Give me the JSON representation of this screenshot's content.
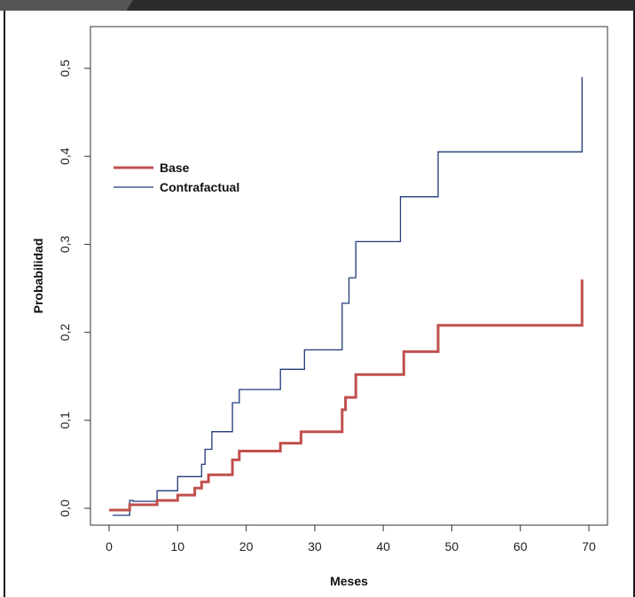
{
  "chart_data": {
    "type": "line",
    "step": true,
    "xlabel": "Meses",
    "ylabel": "Probabilidad",
    "xlim": [
      -3,
      71
    ],
    "ylim": [
      -0.03,
      0.5
    ],
    "x_ticks": [
      0,
      10,
      20,
      30,
      40,
      50,
      60,
      70
    ],
    "x_tick_labels": [
      "0",
      "10",
      "20",
      "30",
      "40",
      "50",
      "60",
      "70"
    ],
    "y_ticks": [
      0.0,
      0.1,
      0.2,
      0.3,
      0.4,
      0.5
    ],
    "y_tick_labels": [
      "0,0",
      "0,1",
      "0,2",
      "0,3",
      "0,4",
      "0,5"
    ],
    "grid": false,
    "legend_position": "top-left",
    "series": [
      {
        "name": "Base",
        "color": "#c0504d",
        "line_width": "thick",
        "points": [
          [
            0,
            -0.002
          ],
          [
            3,
            -0.002
          ],
          [
            3,
            0.004
          ],
          [
            7,
            0.004
          ],
          [
            7,
            0.009
          ],
          [
            10,
            0.009
          ],
          [
            10,
            0.015
          ],
          [
            12.5,
            0.015
          ],
          [
            12.5,
            0.023
          ],
          [
            13.5,
            0.023
          ],
          [
            13.5,
            0.03
          ],
          [
            14.5,
            0.03
          ],
          [
            14.5,
            0.038
          ],
          [
            18,
            0.038
          ],
          [
            18,
            0.055
          ],
          [
            19,
            0.055
          ],
          [
            19,
            0.065
          ],
          [
            25,
            0.065
          ],
          [
            25,
            0.074
          ],
          [
            28,
            0.074
          ],
          [
            28,
            0.087
          ],
          [
            34,
            0.087
          ],
          [
            34,
            0.112
          ],
          [
            34.5,
            0.112
          ],
          [
            34.5,
            0.126
          ],
          [
            36,
            0.126
          ],
          [
            36,
            0.152
          ],
          [
            43,
            0.152
          ],
          [
            43,
            0.178
          ],
          [
            48,
            0.178
          ],
          [
            48,
            0.208
          ],
          [
            69,
            0.208
          ],
          [
            69,
            0.26
          ]
        ]
      },
      {
        "name": "Contrafactual",
        "color": "#1f3a7a",
        "line_width": "thin",
        "points": [
          [
            0.5,
            -0.008
          ],
          [
            3,
            -0.008
          ],
          [
            3,
            0.009
          ],
          [
            3.5,
            0.009
          ],
          [
            3.5,
            0.008
          ],
          [
            7,
            0.008
          ],
          [
            7,
            0.02
          ],
          [
            10,
            0.02
          ],
          [
            10,
            0.036
          ],
          [
            13.5,
            0.036
          ],
          [
            13.5,
            0.05
          ],
          [
            14,
            0.05
          ],
          [
            14,
            0.067
          ],
          [
            15,
            0.067
          ],
          [
            15,
            0.087
          ],
          [
            18,
            0.087
          ],
          [
            18,
            0.12
          ],
          [
            19,
            0.12
          ],
          [
            19,
            0.135
          ],
          [
            25,
            0.135
          ],
          [
            25,
            0.158
          ],
          [
            28.5,
            0.158
          ],
          [
            28.5,
            0.18
          ],
          [
            34,
            0.18
          ],
          [
            34,
            0.233
          ],
          [
            35,
            0.233
          ],
          [
            35,
            0.262
          ],
          [
            36,
            0.262
          ],
          [
            36,
            0.303
          ],
          [
            42.5,
            0.303
          ],
          [
            42.5,
            0.354
          ],
          [
            48,
            0.354
          ],
          [
            48,
            0.405
          ],
          [
            69,
            0.405
          ],
          [
            69,
            0.49
          ]
        ]
      }
    ]
  }
}
